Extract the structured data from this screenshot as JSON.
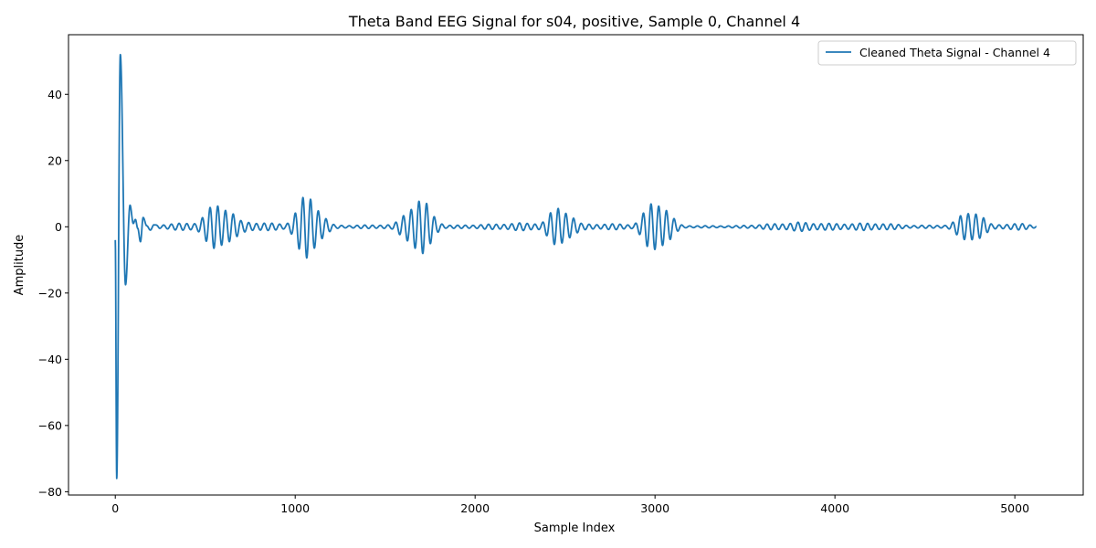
{
  "chart_data": {
    "type": "line",
    "title": "Theta Band EEG Signal for s04, positive, Sample 0, Channel 4",
    "xlabel": "Sample Index",
    "ylabel": "Amplitude",
    "xlim": [
      -260,
      5380
    ],
    "ylim": [
      -81,
      58
    ],
    "xticks": [
      0,
      1000,
      2000,
      3000,
      4000,
      5000
    ],
    "yticks": [
      -80,
      -60,
      -40,
      -20,
      0,
      20,
      40
    ],
    "xtick_labels": [
      "0",
      "1000",
      "2000",
      "3000",
      "4000",
      "5000"
    ],
    "ytick_labels": [
      "−80",
      "−60",
      "−40",
      "−20",
      "0",
      "20",
      "40"
    ],
    "grid": false,
    "legend_position": "top-right",
    "num_samples": 5120,
    "series": [
      {
        "name": "Cleaned Theta Signal - Channel 4",
        "color": "#1f77b4",
        "oscillation_period_samples": 43,
        "initial_transient": [
          [
            0,
            -4
          ],
          [
            8,
            -76
          ],
          [
            28,
            52
          ],
          [
            57,
            -17.5
          ],
          [
            82,
            6.5
          ],
          [
            100,
            1
          ],
          [
            112,
            2.2
          ],
          [
            125,
            -0.5
          ],
          [
            140,
            -4.5
          ],
          [
            155,
            2.8
          ],
          [
            175,
            0.3
          ],
          [
            195,
            -1
          ],
          [
            215,
            0.6
          ]
        ],
        "bursts": [
          {
            "center": 580,
            "width": 70,
            "amplitude": 7.8
          },
          {
            "center": 1075,
            "width": 60,
            "amplitude": 10.2
          },
          {
            "center": 1685,
            "width": 65,
            "amplitude": 9.0
          },
          {
            "center": 2475,
            "width": 60,
            "amplitude": 6.5
          },
          {
            "center": 3010,
            "width": 60,
            "amplitude": 9.0
          },
          {
            "center": 4755,
            "width": 60,
            "amplitude": 5.6
          }
        ],
        "baseline_segments": [
          [
            215,
            0.6
          ],
          [
            400,
            1.2
          ],
          [
            700,
            2.0
          ],
          [
            850,
            1.5
          ],
          [
            1300,
            0.9
          ],
          [
            1500,
            1.1
          ],
          [
            1900,
            0.5
          ],
          [
            2100,
            0.8
          ],
          [
            2250,
            1.2
          ],
          [
            2650,
            1.3
          ],
          [
            2800,
            1.6
          ],
          [
            3250,
            0.5
          ],
          [
            3450,
            0.4
          ],
          [
            3600,
            0.8
          ],
          [
            3800,
            1.4
          ],
          [
            4000,
            1.0
          ],
          [
            4250,
            1.5
          ],
          [
            4450,
            0.7
          ],
          [
            4600,
            1.0
          ],
          [
            4900,
            1.3
          ],
          [
            5050,
            1.4
          ],
          [
            5119,
            0.5
          ]
        ]
      }
    ]
  }
}
